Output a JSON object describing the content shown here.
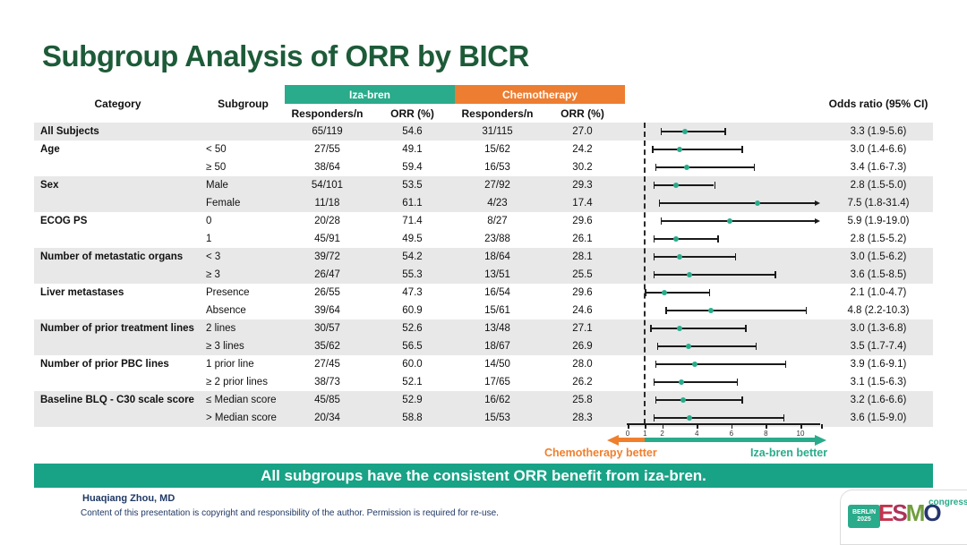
{
  "slide": {
    "title": "Subgroup Analysis of ORR by BICR",
    "banner": "All subgroups have the consistent ORR benefit from iza-bren.",
    "footer": {
      "author": "Huaqiang Zhou, MD",
      "copyright": "Content of this presentation is copyright and responsibility of the author. Permission is required for re-use."
    },
    "logo": {
      "venue": "BERLIN",
      "year": "2025",
      "org_letters": [
        "E",
        "S",
        "M",
        "O"
      ],
      "suffix": "congress"
    }
  },
  "table": {
    "col_category": "Category",
    "col_subgroup": "Subgroup",
    "group_iza": "Iza-bren",
    "group_chemo": "Chemotherapy",
    "col_responders": "Responders/n",
    "col_orr": "ORR (%)",
    "col_odds": "Odds ratio (95% CI)"
  },
  "colors": {
    "title_green": "#1d5b38",
    "iza_teal": "#2aab8b",
    "chemo_orange": "#ed7d31",
    "banner_teal": "#18a286",
    "row_shade": "#e8e8e8",
    "footer_navy": "#1f3864"
  },
  "chart_data": {
    "type": "scatter",
    "subtype": "forest-plot",
    "title": "Subgroup Analysis of ORR by BICR",
    "x_axis": {
      "ticks": [
        0,
        1,
        2,
        4,
        6,
        8,
        10
      ],
      "range": [
        0,
        11.2
      ],
      "reference_line": 1,
      "end_tick": 11.2
    },
    "direction_labels": {
      "left": "Chemotherapy better",
      "right": "Iza-bren better"
    },
    "rows": [
      {
        "category": "All Subjects",
        "subgroup": "",
        "iza_responders": "65/119",
        "iza_orr": "54.6",
        "chemo_responders": "31/115",
        "chemo_orr": "27.0",
        "or": 3.3,
        "ci_low": 1.9,
        "ci_high": 5.6,
        "or_label": "3.3 (1.9-5.6)",
        "shaded": true
      },
      {
        "category": "Age",
        "subgroup": "< 50",
        "iza_responders": "27/55",
        "iza_orr": "49.1",
        "chemo_responders": "15/62",
        "chemo_orr": "24.2",
        "or": 3.0,
        "ci_low": 1.4,
        "ci_high": 6.6,
        "or_label": "3.0 (1.4-6.6)",
        "shaded": false
      },
      {
        "category": "",
        "subgroup": "≥ 50",
        "iza_responders": "38/64",
        "iza_orr": "59.4",
        "chemo_responders": "16/53",
        "chemo_orr": "30.2",
        "or": 3.4,
        "ci_low": 1.6,
        "ci_high": 7.3,
        "or_label": "3.4 (1.6-7.3)",
        "shaded": false
      },
      {
        "category": "Sex",
        "subgroup": "Male",
        "iza_responders": "54/101",
        "iza_orr": "53.5",
        "chemo_responders": "27/92",
        "chemo_orr": "29.3",
        "or": 2.8,
        "ci_low": 1.5,
        "ci_high": 5.0,
        "or_label": "2.8 (1.5-5.0)",
        "shaded": true
      },
      {
        "category": "",
        "subgroup": "Female",
        "iza_responders": "11/18",
        "iza_orr": "61.1",
        "chemo_responders": "4/23",
        "chemo_orr": "17.4",
        "or": 7.5,
        "ci_low": 1.8,
        "ci_high": 31.4,
        "or_label": "7.5 (1.8-31.4)",
        "shaded": true
      },
      {
        "category": "ECOG PS",
        "subgroup": "0",
        "iza_responders": "20/28",
        "iza_orr": "71.4",
        "chemo_responders": "8/27",
        "chemo_orr": "29.6",
        "or": 5.9,
        "ci_low": 1.9,
        "ci_high": 19.0,
        "or_label": "5.9 (1.9-19.0)",
        "shaded": false
      },
      {
        "category": "",
        "subgroup": "1",
        "iza_responders": "45/91",
        "iza_orr": "49.5",
        "chemo_responders": "23/88",
        "chemo_orr": "26.1",
        "or": 2.8,
        "ci_low": 1.5,
        "ci_high": 5.2,
        "or_label": "2.8 (1.5-5.2)",
        "shaded": false
      },
      {
        "category": "Number of metastatic organs",
        "subgroup": "< 3",
        "iza_responders": "39/72",
        "iza_orr": "54.2",
        "chemo_responders": "18/64",
        "chemo_orr": "28.1",
        "or": 3.0,
        "ci_low": 1.5,
        "ci_high": 6.2,
        "or_label": "3.0 (1.5-6.2)",
        "shaded": true
      },
      {
        "category": "",
        "subgroup": "≥ 3",
        "iza_responders": "26/47",
        "iza_orr": "55.3",
        "chemo_responders": "13/51",
        "chemo_orr": "25.5",
        "or": 3.6,
        "ci_low": 1.5,
        "ci_high": 8.5,
        "or_label": "3.6 (1.5-8.5)",
        "shaded": true
      },
      {
        "category": "Liver metastases",
        "subgroup": "Presence",
        "iza_responders": "26/55",
        "iza_orr": "47.3",
        "chemo_responders": "16/54",
        "chemo_orr": "29.6",
        "or": 2.1,
        "ci_low": 1.0,
        "ci_high": 4.7,
        "or_label": "2.1 (1.0-4.7)",
        "shaded": false
      },
      {
        "category": "",
        "subgroup": "Absence",
        "iza_responders": "39/64",
        "iza_orr": "60.9",
        "chemo_responders": "15/61",
        "chemo_orr": "24.6",
        "or": 4.8,
        "ci_low": 2.2,
        "ci_high": 10.3,
        "or_label": "4.8 (2.2-10.3)",
        "shaded": false
      },
      {
        "category": "Number of prior treatment lines",
        "subgroup": "2 lines",
        "iza_responders": "30/57",
        "iza_orr": "52.6",
        "chemo_responders": "13/48",
        "chemo_orr": "27.1",
        "or": 3.0,
        "ci_low": 1.3,
        "ci_high": 6.8,
        "or_label": "3.0 (1.3-6.8)",
        "shaded": true
      },
      {
        "category": "",
        "subgroup": "≥ 3 lines",
        "iza_responders": "35/62",
        "iza_orr": "56.5",
        "chemo_responders": "18/67",
        "chemo_orr": "26.9",
        "or": 3.5,
        "ci_low": 1.7,
        "ci_high": 7.4,
        "or_label": "3.5 (1.7-7.4)",
        "shaded": true
      },
      {
        "category": "Number of prior PBC lines",
        "subgroup": "1 prior line",
        "iza_responders": "27/45",
        "iza_orr": "60.0",
        "chemo_responders": "14/50",
        "chemo_orr": "28.0",
        "or": 3.9,
        "ci_low": 1.6,
        "ci_high": 9.1,
        "or_label": "3.9 (1.6-9.1)",
        "shaded": false
      },
      {
        "category": "",
        "subgroup": "≥ 2 prior lines",
        "iza_responders": "38/73",
        "iza_orr": "52.1",
        "chemo_responders": "17/65",
        "chemo_orr": "26.2",
        "or": 3.1,
        "ci_low": 1.5,
        "ci_high": 6.3,
        "or_label": "3.1 (1.5-6.3)",
        "shaded": false
      },
      {
        "category": "Baseline BLQ - C30 scale score",
        "subgroup": "≤ Median score",
        "iza_responders": "45/85",
        "iza_orr": "52.9",
        "chemo_responders": "16/62",
        "chemo_orr": "25.8",
        "or": 3.2,
        "ci_low": 1.6,
        "ci_high": 6.6,
        "or_label": "3.2 (1.6-6.6)",
        "shaded": true
      },
      {
        "category": "",
        "subgroup": "> Median score",
        "iza_responders": "20/34",
        "iza_orr": "58.8",
        "chemo_responders": "15/53",
        "chemo_orr": "28.3",
        "or": 3.6,
        "ci_low": 1.5,
        "ci_high": 9.0,
        "or_label": "3.6 (1.5-9.0)",
        "shaded": true
      }
    ]
  }
}
